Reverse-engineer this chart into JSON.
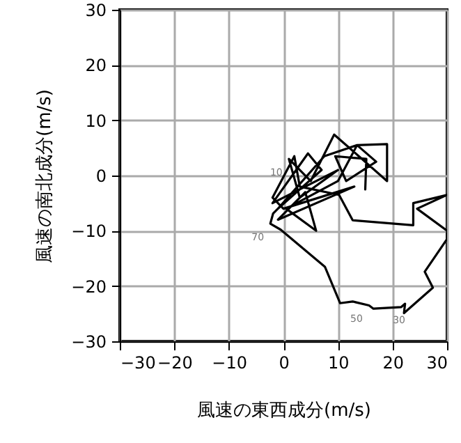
{
  "chart_data": {
    "type": "line",
    "xlabel": "風速の東西成分(m/s)",
    "ylabel": "風速の南北成分(m/s)",
    "x": [
      15,
      15.2,
      9.5,
      11.5,
      17,
      13.5,
      19,
      19,
      9.3,
      5,
      1,
      3,
      10,
      -2,
      4.5,
      7,
      -1,
      7.5,
      13.5,
      10,
      0.5,
      6,
      4,
      -1,
      13,
      0,
      -2,
      2,
      3,
      10.2,
      12.7,
      23.8,
      23.8,
      30,
      24.5,
      30,
      30,
      25.9,
      27.4,
      22.1,
      22.3,
      21.6,
      16.5,
      15.7,
      12.7,
      10.4,
      7.6,
      -0.5,
      -2.4,
      -1.9,
      0
    ],
    "series": [
      {
        "color": "#000000",
        "values": [
          -2.5,
          3,
          3.5,
          -1,
          2.5,
          5.5,
          5.7,
          -1,
          7.4,
          -1,
          3,
          -4,
          1,
          -5,
          4,
          1,
          -6,
          3.5,
          5.5,
          -1,
          -6,
          -10,
          -3,
          -8,
          -2,
          -6,
          -4,
          3.5,
          -2,
          -3.5,
          -8.1,
          -9,
          -5,
          -3.5,
          -6,
          -10,
          -11.5,
          -17.4,
          -20.3,
          -24.9,
          -23.2,
          -23.8,
          -24.1,
          -23.5,
          -22.8,
          -23.1,
          -16.5,
          -9.8,
          -8.7,
          -6.9,
          -5
        ]
      }
    ],
    "xlim": [
      -30,
      30
    ],
    "xticks": [
      -30,
      -20,
      -10,
      0,
      10,
      20,
      30
    ],
    "ylim": [
      -30,
      30
    ],
    "yticks": [
      -30,
      -20,
      -10,
      0,
      10,
      20,
      30
    ],
    "grid": true,
    "marker": "none",
    "line_style": "solid",
    "annotations": [
      {
        "text": "10",
        "x": 1,
        "y": 3
      },
      {
        "text": "70",
        "x": -2.4,
        "y": -8.7
      },
      {
        "text": "50",
        "x": 15.7,
        "y": -23.5
      },
      {
        "text": "30",
        "x": 23.5,
        "y": -23.7
      }
    ]
  }
}
